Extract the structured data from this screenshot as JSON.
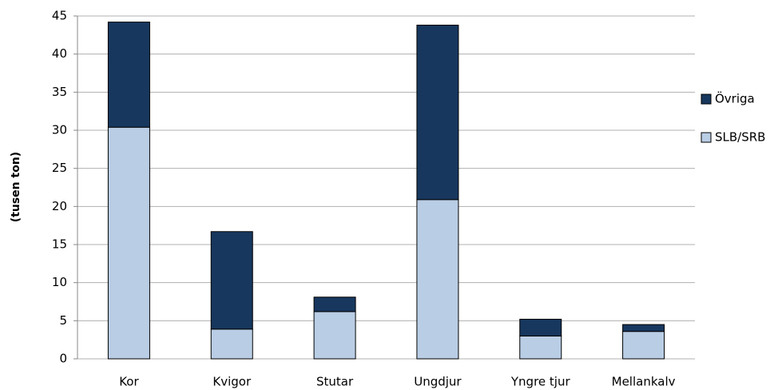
{
  "chart_data": {
    "type": "stacked_bar",
    "y_label": "(tusen ton)",
    "categories": [
      "Kor",
      "Kvigor",
      "Stutar",
      "Ungdjur",
      "Yngre tjur",
      "Mellankalv"
    ],
    "series": [
      {
        "name": "SLB/SRB",
        "color": "#b9cde5",
        "values": [
          30.4,
          3.9,
          6.2,
          20.9,
          3.0,
          3.6
        ]
      },
      {
        "name": "Övriga",
        "color": "#17375e",
        "values": [
          13.8,
          12.8,
          1.9,
          22.9,
          2.2,
          0.9
        ]
      }
    ],
    "ylim": [
      0,
      45
    ],
    "yticks": [
      0,
      5,
      10,
      15,
      20,
      25,
      30,
      35,
      40,
      45
    ],
    "grid": true
  }
}
